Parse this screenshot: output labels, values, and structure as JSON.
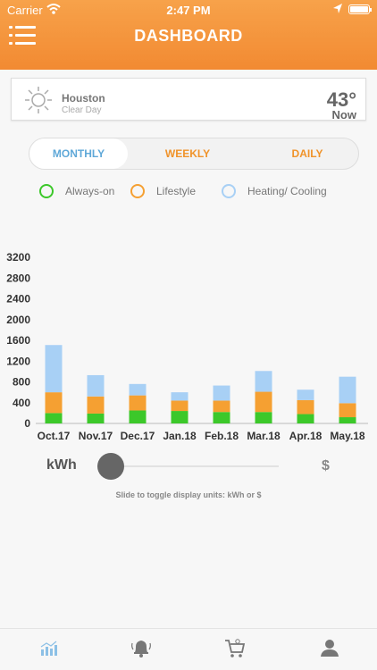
{
  "status": {
    "carrier": "Carrier",
    "time": "2:47 PM"
  },
  "header": {
    "title": "DASHBOARD"
  },
  "weather": {
    "city": "Houston",
    "condition": "Clear Day",
    "temperature": "43°",
    "time_label": "Now",
    "icon": "sun-icon"
  },
  "tabs": [
    {
      "label": "MONTHLY",
      "active": true
    },
    {
      "label": "WEEKLY",
      "active": false
    },
    {
      "label": "DAILY",
      "active": false
    }
  ],
  "legend": [
    {
      "label": "Always-on",
      "color": "#3cc82a"
    },
    {
      "label": "Lifestyle",
      "color": "#f5a032"
    },
    {
      "label": "Heating/ Cooling",
      "color": "#a8d0f5"
    }
  ],
  "chart_data": {
    "type": "bar",
    "stacked": true,
    "categories": [
      "Oct.17",
      "Nov.17",
      "Dec.17",
      "Jan.18",
      "Feb.18",
      "Mar.18",
      "Apr.18",
      "May.18"
    ],
    "series": [
      {
        "name": "Always-on",
        "values": [
          200,
          190,
          250,
          240,
          220,
          220,
          180,
          120
        ]
      },
      {
        "name": "Lifestyle",
        "values": [
          400,
          330,
          290,
          200,
          220,
          390,
          270,
          270
        ]
      },
      {
        "name": "Heating/ Cooling",
        "values": [
          910,
          410,
          220,
          160,
          290,
          400,
          200,
          510
        ]
      }
    ],
    "y_ticks": [
      "0",
      "400",
      "800",
      "1200",
      "1600",
      "2000",
      "2400",
      "2800",
      "3200"
    ],
    "ylim": [
      0,
      3200
    ],
    "colors": [
      "#3cc82a",
      "#f5a032",
      "#a8d0f5"
    ],
    "grid": false
  },
  "units": {
    "left": "kWh",
    "right": "$",
    "hint": "Slide to toggle display units: kWh or $",
    "selected_fraction": 0
  },
  "tabbar": [
    "usage-chart-icon",
    "bell-icon",
    "cart-icon",
    "profile-icon"
  ]
}
